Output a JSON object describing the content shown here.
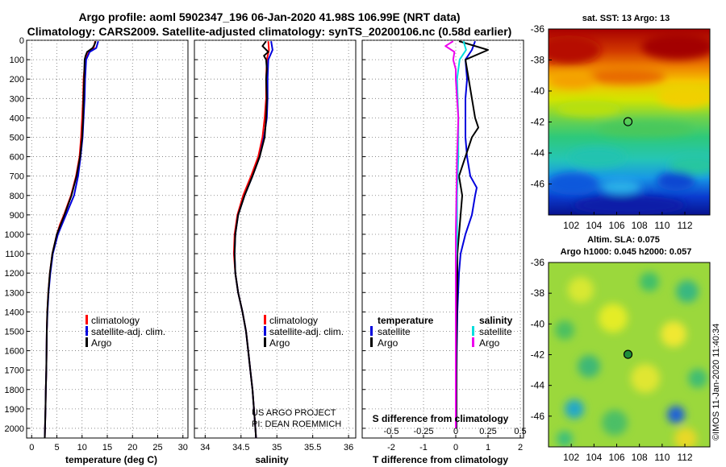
{
  "title": {
    "line1": "Argo profile: aoml 5902347_196 06-Jan-2020 41.98S 106.99E (NRT data)",
    "line2": "Climatology: CARS2009. Satellite-adjusted climatology: synTS_20200106.nc (0.58d earlier)"
  },
  "colors": {
    "climatology": "#ff0000",
    "satellite": "#0000dd",
    "argo": "#000000",
    "sal_satellite": "#00dddd",
    "sal_argo": "#ee00ee"
  },
  "credit": {
    "line1": "US ARGO PROJECT",
    "line2": "PI: DEAN ROEMMICH"
  },
  "chart_data": [
    {
      "type": "line",
      "name": "temperature-profile",
      "xlabel": "temperature (deg C)",
      "ylabel": "depth",
      "xlim": [
        -1,
        31
      ],
      "ylim": [
        2050,
        0
      ],
      "xticks": [
        0,
        5,
        10,
        15,
        20,
        25,
        30
      ],
      "yticks": [
        0,
        100,
        200,
        300,
        400,
        500,
        600,
        700,
        800,
        900,
        1000,
        1100,
        1200,
        1300,
        1400,
        1500,
        1600,
        1700,
        1800,
        1900,
        2000
      ],
      "legend": [
        "climatology",
        "satellite-adj. clim.",
        "Argo"
      ],
      "series": [
        {
          "name": "climatology",
          "color": "#ff0000",
          "depth": [
            5,
            40,
            60,
            100,
            200,
            300,
            400,
            500,
            600,
            700,
            800,
            850,
            900,
            950,
            1000,
            1100,
            1200,
            1300,
            1400,
            1500,
            1600,
            1700,
            1800,
            1900,
            2000,
            2050
          ],
          "values": [
            12.6,
            12.3,
            11.4,
            10.6,
            10.3,
            10.2,
            10.0,
            9.8,
            9.5,
            8.8,
            7.8,
            7.1,
            6.4,
            5.6,
            5.0,
            4.1,
            3.6,
            3.3,
            3.1,
            3.0,
            2.95,
            2.9,
            2.8,
            2.75,
            2.65,
            2.6
          ]
        },
        {
          "name": "satellite-adj. clim.",
          "color": "#0000dd",
          "depth": [
            5,
            40,
            60,
            100,
            200,
            300,
            400,
            500,
            600,
            700,
            800,
            850,
            900,
            950,
            1000,
            1100,
            1200,
            1300,
            1400,
            1500,
            1600,
            1700,
            1800,
            1900,
            2000,
            2050
          ],
          "values": [
            13.2,
            12.8,
            11.5,
            10.8,
            10.6,
            10.5,
            10.3,
            10.1,
            9.7,
            9.2,
            8.4,
            7.6,
            6.8,
            6.0,
            5.2,
            4.2,
            3.7,
            3.35,
            3.15,
            3.0,
            2.95,
            2.9,
            2.8,
            2.75,
            2.65,
            2.6
          ]
        },
        {
          "name": "Argo",
          "color": "#000000",
          "depth": [
            5,
            20,
            40,
            60,
            80,
            100,
            200,
            300,
            400,
            500,
            600,
            700,
            800,
            900,
            1000,
            1100,
            1200,
            1300,
            1400,
            1500,
            1600,
            1700,
            1800,
            1900,
            2000,
            2050
          ],
          "values": [
            12.7,
            12.5,
            12.1,
            11.0,
            10.7,
            10.5,
            10.4,
            10.3,
            10.2,
            10.0,
            9.6,
            8.9,
            7.9,
            6.5,
            5.0,
            4.1,
            3.6,
            3.3,
            3.1,
            3.0,
            2.95,
            2.9,
            2.8,
            2.75,
            2.65,
            2.6
          ]
        }
      ]
    },
    {
      "type": "line",
      "name": "salinity-profile",
      "xlabel": "salinity",
      "ylabel": "depth",
      "xlim": [
        33.85,
        36.1
      ],
      "ylim": [
        2050,
        0
      ],
      "xticks": [
        34,
        34.5,
        35,
        35.5,
        36
      ],
      "xticklabels": [
        "34",
        "34.5",
        "35",
        "35.5",
        "36"
      ],
      "legend": [
        "climatology",
        "satellite-adj. clim.",
        "Argo"
      ],
      "series": [
        {
          "name": "climatology",
          "color": "#ff0000",
          "depth": [
            5,
            50,
            100,
            200,
            300,
            400,
            500,
            600,
            700,
            800,
            900,
            1000,
            1100,
            1200,
            1300,
            1400,
            1500,
            1600,
            1700,
            1800,
            1900,
            2000,
            2050
          ],
          "values": [
            34.88,
            34.89,
            34.86,
            34.85,
            34.85,
            34.83,
            34.8,
            34.74,
            34.64,
            34.53,
            34.45,
            34.41,
            34.4,
            34.42,
            34.46,
            34.52,
            34.57,
            34.6,
            34.63,
            34.66,
            34.68,
            34.7,
            34.71
          ]
        },
        {
          "name": "satellite-adj. clim.",
          "color": "#0000dd",
          "depth": [
            5,
            50,
            100,
            200,
            300,
            400,
            500,
            600,
            700,
            800,
            900,
            1000,
            1100,
            1200,
            1300,
            1400,
            1500,
            1600,
            1700,
            1800,
            1900,
            2000,
            2050
          ],
          "values": [
            34.92,
            34.94,
            34.88,
            34.87,
            34.87,
            34.86,
            34.82,
            34.76,
            34.66,
            34.55,
            34.46,
            34.42,
            34.41,
            34.42,
            34.46,
            34.52,
            34.57,
            34.6,
            34.63,
            34.66,
            34.68,
            34.7,
            34.71
          ]
        },
        {
          "name": "Argo",
          "color": "#000000",
          "depth": [
            5,
            30,
            60,
            80,
            100,
            150,
            200,
            300,
            400,
            500,
            600,
            700,
            800,
            900,
            1000,
            1100,
            1200,
            1300,
            1400,
            1500,
            1600,
            1700,
            1800,
            1900,
            2000,
            2050
          ],
          "values": [
            34.85,
            34.8,
            34.88,
            34.82,
            34.85,
            34.86,
            34.85,
            34.86,
            34.85,
            34.83,
            34.76,
            34.66,
            34.55,
            34.46,
            34.42,
            34.41,
            34.42,
            34.46,
            34.52,
            34.57,
            34.6,
            34.63,
            34.66,
            34.68,
            34.7,
            34.71
          ]
        }
      ]
    },
    {
      "type": "line",
      "name": "difference-profile",
      "xlabel": "T difference from climatology",
      "xlabel_top": "S difference from climatology",
      "ylabel": "depth",
      "xlim": [
        -2.9,
        2.1
      ],
      "ylim": [
        2050,
        0
      ],
      "xticks": [
        -2,
        -1,
        0,
        1,
        2
      ],
      "xticklabels": [
        "-2",
        "-1",
        "0",
        "1",
        "2"
      ],
      "s_xlim": [
        -0.725,
        0.525
      ],
      "s_xticks": [
        -0.5,
        -0.25,
        0,
        0.25,
        0.5
      ],
      "s_xticklabels": [
        "-0.5",
        "-0.25",
        "0",
        "0.25",
        "0.5"
      ],
      "legend_temperature_header": "temperature",
      "legend_salinity_header": "salinity",
      "legend_temperature": [
        "satellite",
        "Argo"
      ],
      "legend_salinity": [
        "satellite",
        "Argo"
      ],
      "series": [
        {
          "name": "temperature satellite",
          "axis": "T",
          "color": "#0000dd",
          "depth": [
            5,
            50,
            100,
            200,
            300,
            400,
            500,
            600,
            700,
            760,
            800,
            900,
            1000,
            1100,
            1200,
            1400,
            1600,
            1800,
            2000
          ],
          "values": [
            0.6,
            0.5,
            0.3,
            0.35,
            0.3,
            0.3,
            0.3,
            0.35,
            0.45,
            0.65,
            0.6,
            0.5,
            0.3,
            0.15,
            0.1,
            0.05,
            0.03,
            0.02,
            0.02
          ]
        },
        {
          "name": "temperature Argo",
          "axis": "T",
          "color": "#000000",
          "depth": [
            5,
            50,
            100,
            200,
            300,
            400,
            450,
            500,
            600,
            700,
            800,
            900,
            1000,
            1100,
            1200,
            1400,
            1600,
            1800,
            2000
          ],
          "values": [
            0.1,
            1.0,
            0.3,
            0.4,
            0.5,
            0.6,
            0.7,
            0.5,
            0.3,
            0.1,
            0.2,
            0.15,
            0.1,
            0.05,
            0.05,
            0.03,
            0.02,
            0.02,
            0.02
          ]
        },
        {
          "name": "salinity satellite",
          "axis": "S",
          "color": "#00dddd",
          "depth": [
            5,
            50,
            100,
            200,
            400,
            600,
            800,
            1000,
            1200,
            1600,
            2000
          ],
          "values": [
            0.06,
            0.08,
            0.03,
            0.01,
            0.02,
            0.02,
            0.01,
            0.01,
            0.0,
            0.0,
            0.0
          ]
        },
        {
          "name": "salinity Argo",
          "axis": "S",
          "color": "#ee00ee",
          "depth": [
            5,
            30,
            60,
            100,
            150,
            200,
            300,
            400,
            600,
            1000,
            2000
          ],
          "values": [
            -0.02,
            -0.08,
            -0.01,
            -0.02,
            0.0,
            0.0,
            0.01,
            0.02,
            0.01,
            0.0,
            0.0
          ]
        }
      ]
    },
    {
      "type": "heatmap",
      "name": "sst-map",
      "title": "sat. SST: 13 Argo: 13",
      "xlim": [
        100,
        114.2
      ],
      "ylim": [
        -48,
        -36
      ],
      "xticks": [
        102,
        104,
        106,
        108,
        110,
        112
      ],
      "yticks": [
        -36,
        -38,
        -40,
        -42,
        -44,
        -46
      ],
      "profile_location": [
        106.99,
        -41.98
      ]
    },
    {
      "type": "heatmap",
      "name": "sla-map",
      "title_line1": "Altim. SLA: 0.075",
      "title_line2": "Argo h1000: 0.045 h2000: 0.057",
      "xlim": [
        100,
        114.2
      ],
      "ylim": [
        -48,
        -36
      ],
      "xticks": [
        102,
        104,
        106,
        108,
        110,
        112
      ],
      "yticks": [
        -36,
        -38,
        -40,
        -42,
        -44,
        -46
      ],
      "profile_location": [
        106.99,
        -41.98
      ]
    }
  ],
  "footer": "©IMOS 11-Jan-2020 11:40:34"
}
